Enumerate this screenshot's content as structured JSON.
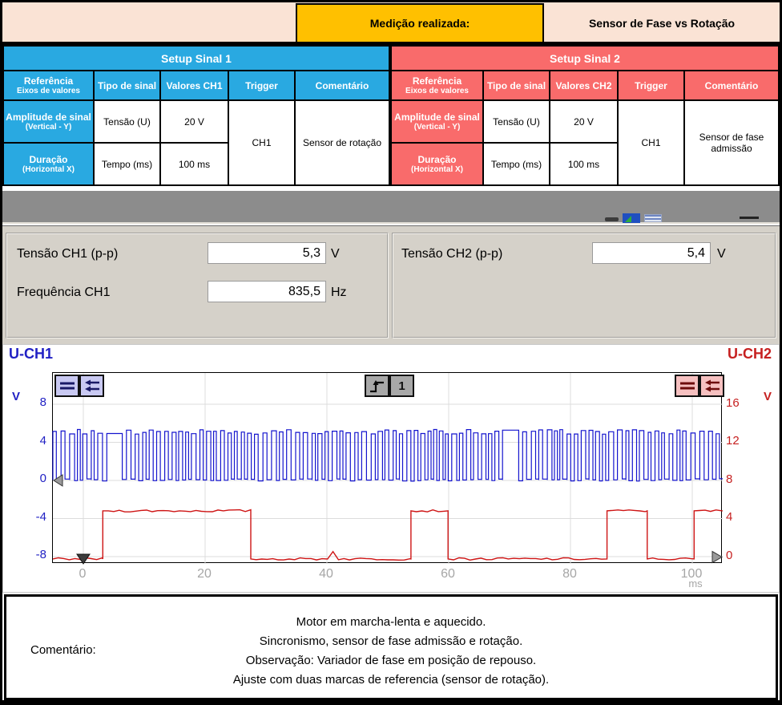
{
  "header": {
    "measured_label": "Medição realizada:",
    "measured_value": "Sensor de Fase vs Rotação"
  },
  "setup1": {
    "title": "Setup Sinal 1",
    "accent": "#29A9E1",
    "headers": {
      "ref": "Referência",
      "ref_sub": "Eixos de valores",
      "type": "Tipo de sinal",
      "values": "Valores CH1",
      "trigger": "Trigger",
      "comment": "Comentário"
    },
    "row_amplitude": {
      "ref": "Amplitude de sinal",
      "ref_sub": "(Vertical - Y)",
      "type": "Tensão (U)",
      "value": "20 V"
    },
    "row_duration": {
      "ref": "Duração",
      "ref_sub": "(Horizontal X)",
      "type": "Tempo (ms)",
      "value": "100 ms"
    },
    "trigger_value": "CH1",
    "comment_value": "Sensor de rotação"
  },
  "setup2": {
    "title": "Setup Sinal 2",
    "accent": "#F96B6B",
    "headers": {
      "ref": "Referência",
      "ref_sub": "Eixos de valores",
      "type": "Tipo de sinal",
      "values": "Valores CH2",
      "trigger": "Trigger",
      "comment": "Comentário"
    },
    "row_amplitude": {
      "ref": "Amplitude de sinal",
      "ref_sub": "(Vertical - Y)",
      "type": "Tensão (U)",
      "value": "20 V"
    },
    "row_duration": {
      "ref": "Duração",
      "ref_sub": "(Horizontal X)",
      "type": "Tempo (ms)",
      "value": "100 ms"
    },
    "trigger_value": "CH1",
    "comment_value": "Sensor de fase admissão"
  },
  "measurements": {
    "left": [
      {
        "label": "Tensão CH1 (p-p)",
        "value": "5,3",
        "unit": "V"
      },
      {
        "label": "Frequência CH1",
        "value": "835,5",
        "unit": "Hz"
      }
    ],
    "right": [
      {
        "label": "Tensão CH2 (p-p)",
        "value": "5,4",
        "unit": "V"
      }
    ]
  },
  "scope": {
    "ch1_title": "U-CH1",
    "ch2_title": "U-CH2",
    "trigger_number": "1"
  },
  "chart_data": {
    "type": "line",
    "title": "Dual channel oscilloscope: phase sensor vs rotation sensor",
    "x_unit": "ms",
    "x_range_ms": [
      -5,
      105
    ],
    "x_ticks": [
      0,
      20,
      40,
      60,
      80,
      100
    ],
    "left_axis": {
      "unit": "V",
      "ticks": [
        8,
        4,
        0,
        -4,
        -8
      ],
      "color": "#2121C4"
    },
    "right_axis": {
      "unit": "V",
      "ticks": [
        16,
        12,
        8,
        4,
        0
      ],
      "color": "#C62020"
    },
    "grid": true,
    "series": [
      {
        "name": "U-CH1",
        "axis": "left",
        "color": "#1414CE",
        "shape": "square",
        "low_v": 0.05,
        "high_v": 5.1,
        "freq_hz": 835.5,
        "gap_plateaus_ms": [
          [
            4.2,
            6.4
          ],
          [
            69.2,
            71.5
          ]
        ]
      },
      {
        "name": "U-CH2",
        "axis": "right",
        "color": "#CE1414",
        "shape": "square",
        "low_v": -0.2,
        "high_v": 4.85,
        "initial_level": "low",
        "edges_ms": [
          3.2,
          27.5,
          53.8,
          59.9,
          86.0,
          92.6,
          100.3
        ],
        "spikes_ms": [
          41.4
        ]
      }
    ]
  },
  "comment": {
    "label": "Comentário:",
    "lines": [
      "Motor em marcha-lenta e aquecido.",
      "Sincronismo, sensor de fase admissão e rotação.",
      "Observação: Variador de fase em posição de repouso.",
      "Ajuste com duas marcas de referencia (sensor de rotação)."
    ]
  }
}
